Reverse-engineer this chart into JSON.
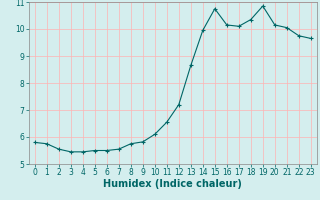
{
  "x": [
    0,
    1,
    2,
    3,
    4,
    5,
    6,
    7,
    8,
    9,
    10,
    11,
    12,
    13,
    14,
    15,
    16,
    17,
    18,
    19,
    20,
    21,
    22,
    23
  ],
  "y": [
    5.8,
    5.75,
    5.55,
    5.45,
    5.45,
    5.5,
    5.5,
    5.55,
    5.75,
    5.82,
    6.1,
    6.55,
    7.2,
    8.65,
    9.95,
    10.75,
    10.15,
    10.1,
    10.35,
    10.85,
    10.15,
    10.05,
    9.75,
    9.65
  ],
  "xlabel": "Humidex (Indice chaleur)",
  "ylim": [
    5,
    11
  ],
  "xlim": [
    -0.5,
    23.5
  ],
  "bg_color": "#d4eeee",
  "line_color": "#006666",
  "marker_color": "#006666",
  "grid_color": "#ffb3b3",
  "tick_color": "#006666",
  "xlabel_fontsize": 7,
  "yticks": [
    5,
    6,
    7,
    8,
    9,
    10,
    11
  ],
  "xticks": [
    0,
    1,
    2,
    3,
    4,
    5,
    6,
    7,
    8,
    9,
    10,
    11,
    12,
    13,
    14,
    15,
    16,
    17,
    18,
    19,
    20,
    21,
    22,
    23
  ]
}
